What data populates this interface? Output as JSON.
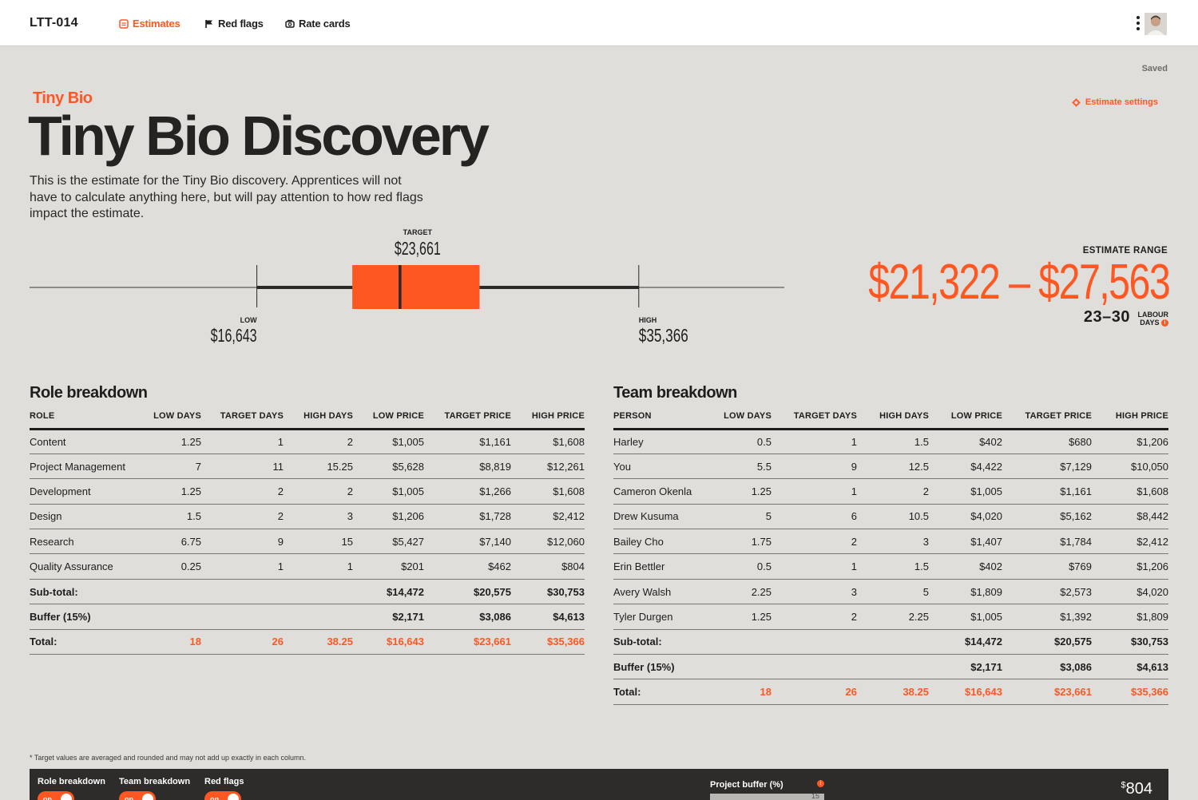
{
  "app": {
    "project_code": "LTT-014",
    "saved_status": "Saved",
    "nav": [
      {
        "label": "Estimates",
        "icon": "estimate-icon",
        "active": true
      },
      {
        "label": "Red flags",
        "icon": "flag-icon",
        "active": false
      },
      {
        "label": "Rate cards",
        "icon": "rate-card-icon",
        "active": false
      }
    ]
  },
  "header": {
    "client": "Tiny Bio",
    "title": "Tiny Bio Discovery",
    "description": "This is the estimate for the Tiny Bio discovery. Apprentices will not have to calculate anything here, but will pay attention to how red flags impact the estimate.",
    "settings_label": "Estimate settings"
  },
  "range_plot": {
    "low_label": "LOW",
    "low_value": "$16,643",
    "target_label": "TARGET",
    "target_value": "$23,661",
    "high_label": "HIGH",
    "high_value": "$35,366",
    "low": 16643,
    "q1": 21322,
    "target": 23661,
    "q3": 27563,
    "high": 35366,
    "axis_min": 5500,
    "axis_max": 42500,
    "accent": "#ff5722"
  },
  "estimate": {
    "label": "ESTIMATE RANGE",
    "range": "$21,322 – $27,563",
    "days": "23–30",
    "days_unit_line1": "LABOUR",
    "days_unit_line2": "DAYS"
  },
  "role_breakdown": {
    "title": "Role breakdown",
    "columns": [
      "ROLE",
      "LOW DAYS",
      "TARGET DAYS",
      "HIGH DAYS",
      "LOW PRICE",
      "TARGET PRICE",
      "HIGH PRICE"
    ],
    "rows": [
      [
        "Content",
        "1.25",
        "1",
        "2",
        "$1,005",
        "$1,161",
        "$1,608"
      ],
      [
        "Project Management",
        "7",
        "11",
        "15.25",
        "$5,628",
        "$8,819",
        "$12,261"
      ],
      [
        "Development",
        "1.25",
        "2",
        "2",
        "$1,005",
        "$1,266",
        "$1,608"
      ],
      [
        "Design",
        "1.5",
        "2",
        "3",
        "$1,206",
        "$1,728",
        "$2,412"
      ],
      [
        "Research",
        "6.75",
        "9",
        "15",
        "$5,427",
        "$7,140",
        "$12,060"
      ],
      [
        "Quality Assurance",
        "0.25",
        "1",
        "1",
        "$201",
        "$462",
        "$804"
      ]
    ],
    "subtotal": [
      "Sub-total:",
      "",
      "",
      "",
      "$14,472",
      "$20,575",
      "$30,753"
    ],
    "buffer": [
      "Buffer (15%)",
      "",
      "",
      "",
      "$2,171",
      "$3,086",
      "$4,613"
    ],
    "total": [
      "Total:",
      "18",
      "26",
      "38.25",
      "$16,643",
      "$23,661",
      "$35,366"
    ]
  },
  "team_breakdown": {
    "title": "Team breakdown",
    "columns": [
      "PERSON",
      "LOW DAYS",
      "TARGET DAYS",
      "HIGH DAYS",
      "LOW PRICE",
      "TARGET PRICE",
      "HIGH PRICE"
    ],
    "rows": [
      [
        "Harley",
        "0.5",
        "1",
        "1.5",
        "$402",
        "$680",
        "$1,206"
      ],
      [
        "You",
        "5.5",
        "9",
        "12.5",
        "$4,422",
        "$7,129",
        "$10,050"
      ],
      [
        "Cameron Okenla",
        "1.25",
        "1",
        "2",
        "$1,005",
        "$1,161",
        "$1,608"
      ],
      [
        "Drew Kusuma",
        "5",
        "6",
        "10.5",
        "$4,020",
        "$5,162",
        "$8,442"
      ],
      [
        "Bailey Cho",
        "1.75",
        "2",
        "3",
        "$1,407",
        "$1,784",
        "$2,412"
      ],
      [
        "Erin Bettler",
        "0.5",
        "1",
        "1.5",
        "$402",
        "$769",
        "$1,206"
      ],
      [
        "Avery Walsh",
        "2.25",
        "3",
        "5",
        "$1,809",
        "$2,573",
        "$4,020"
      ],
      [
        "Tyler Durgen",
        "1.25",
        "2",
        "2.25",
        "$1,005",
        "$1,392",
        "$1,809"
      ]
    ],
    "subtotal": [
      "Sub-total:",
      "",
      "",
      "",
      "$14,472",
      "$20,575",
      "$30,753"
    ],
    "buffer": [
      "Buffer (15%)",
      "",
      "",
      "",
      "$2,171",
      "$3,086",
      "$4,613"
    ],
    "total": [
      "Total:",
      "18",
      "26",
      "38.25",
      "$16,643",
      "$23,661",
      "$35,366"
    ]
  },
  "footnote": "* Target values are averaged and rounded and may not add up exactly in each column.",
  "bottom_bar": {
    "toggles": [
      {
        "label": "Role breakdown",
        "state": "on"
      },
      {
        "label": "Team breakdown",
        "state": "on"
      },
      {
        "label": "Red flags",
        "state": "on"
      }
    ],
    "buffer_label": "Project buffer (%)",
    "buffer_value": "15",
    "value_currency": "$",
    "value": "804"
  }
}
